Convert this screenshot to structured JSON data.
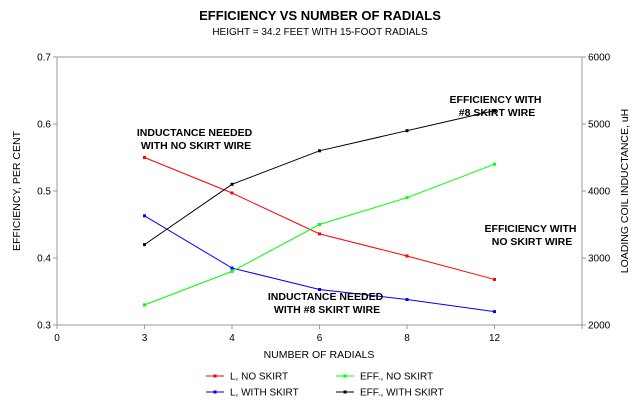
{
  "chart_data": {
    "type": "line",
    "title": "EFFICIENCY VS NUMBER OF RADIALS",
    "subtitle": "HEIGHT = 34.2 FEET WITH 15-FOOT RADIALS",
    "xlabel": "NUMBER OF RADIALS",
    "ylabel_left": "EFFICIENCY, PER CENT",
    "ylabel_right": "LOADING COIL INDUCTANCE, uH",
    "categories": [
      "0",
      "3",
      "4",
      "6",
      "8",
      "12"
    ],
    "y_left": {
      "range": [
        0.3,
        0.7
      ],
      "ticks": [
        "0.3",
        "0.4",
        "0.5",
        "0.6",
        "0.7"
      ]
    },
    "y_right": {
      "range": [
        2000,
        6000
      ],
      "ticks": [
        "2000",
        "3000",
        "4000",
        "5000",
        "6000"
      ]
    },
    "grid": false,
    "legend_position": "bottom",
    "series": [
      {
        "name": "L, NO SKIRT",
        "axis": "right",
        "color": "#ff0000",
        "x": [
          "3",
          "4",
          "6",
          "8",
          "12"
        ],
        "values": [
          4500,
          3970,
          3360,
          3030,
          2680
        ]
      },
      {
        "name": "L, WITH SKIRT",
        "axis": "right",
        "color": "#0000ff",
        "x": [
          "3",
          "4",
          "6",
          "8",
          "12"
        ],
        "values": [
          3630,
          2850,
          2530,
          2380,
          2200
        ]
      },
      {
        "name": "EFF., NO SKIRT",
        "axis": "left",
        "color": "#00ff00",
        "x": [
          "3",
          "4",
          "6",
          "8",
          "12"
        ],
        "values": [
          0.33,
          0.38,
          0.45,
          0.49,
          0.54
        ]
      },
      {
        "name": "EFF., WITH SKIRT",
        "axis": "left",
        "color": "#000000",
        "x": [
          "3",
          "4",
          "6",
          "8",
          "12"
        ],
        "values": [
          0.42,
          0.51,
          0.56,
          0.59,
          0.62
        ]
      }
    ],
    "annotations": [
      {
        "lines": [
          "INDUCTANCE NEEDED",
          "WITH NO SKIRT WIRE"
        ],
        "near_series": "L, NO SKIRT"
      },
      {
        "lines": [
          "EFFICIENCY WITH",
          "#8 SKIRT WIRE"
        ],
        "near_series": "EFF., WITH SKIRT"
      },
      {
        "lines": [
          "EFFICIENCY WITH",
          "NO SKIRT WIRE"
        ],
        "near_series": "EFF., NO SKIRT"
      },
      {
        "lines": [
          "INDUCTANCE NEEDED",
          "WITH #8 SKIRT WIRE"
        ],
        "near_series": "L, WITH SKIRT"
      }
    ]
  }
}
